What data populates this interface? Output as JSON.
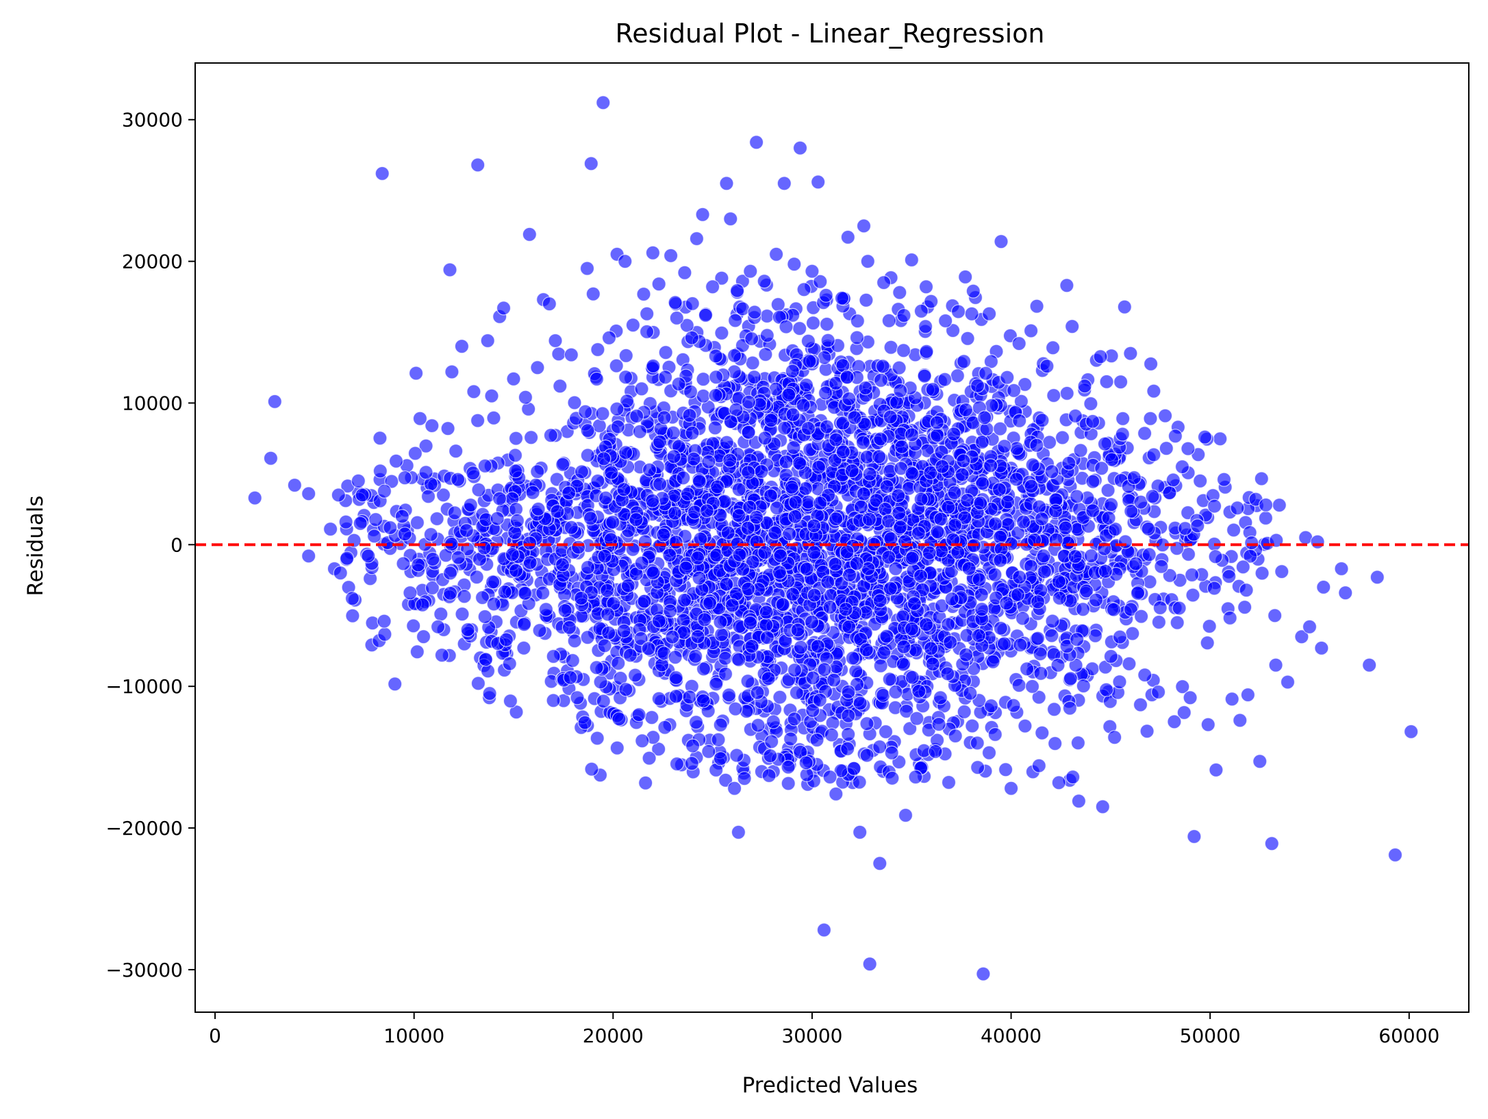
{
  "chart_data": {
    "type": "scatter",
    "title": "Residual Plot - Linear_Regression",
    "xlabel": "Predicted Values",
    "ylabel": "Residuals",
    "xlim": [
      -1000,
      63000
    ],
    "ylim": [
      -33000,
      34000
    ],
    "x_ticks": [
      0,
      10000,
      20000,
      30000,
      40000,
      50000,
      60000
    ],
    "y_ticks": [
      -30000,
      -20000,
      -10000,
      0,
      10000,
      20000,
      30000
    ],
    "x_tick_labels": [
      "0",
      "10000",
      "20000",
      "30000",
      "40000",
      "50000",
      "60000"
    ],
    "y_tick_labels": [
      "−30000",
      "−20000",
      "−10000",
      "0",
      "10000",
      "20000",
      "30000"
    ],
    "grid": false,
    "legend": false,
    "marker_color": "#0000ff",
    "marker_alpha": 0.6,
    "marker_edge_color": "#ffffff",
    "reference_line": {
      "y": 0,
      "color": "#ff0000",
      "style": "dashed"
    },
    "series": [
      {
        "points": [
          [
            2000,
            3300
          ],
          [
            2800,
            6100
          ],
          [
            3000,
            10100
          ],
          [
            4000,
            4200
          ],
          [
            4700,
            3600
          ],
          [
            4700,
            -800
          ],
          [
            5800,
            1100
          ],
          [
            6000,
            -1700
          ],
          [
            6200,
            3500
          ],
          [
            6300,
            -2000
          ],
          [
            7200,
            4500
          ],
          [
            7300,
            1500
          ],
          [
            7400,
            3500
          ],
          [
            7700,
            -800
          ],
          [
            8000,
            600
          ],
          [
            8300,
            5200
          ],
          [
            8400,
            26200
          ],
          [
            8500,
            -5400
          ],
          [
            8800,
            1200
          ],
          [
            9100,
            5900
          ],
          [
            9400,
            2000
          ],
          [
            9800,
            -3400
          ],
          [
            10100,
            12100
          ],
          [
            10300,
            8900
          ],
          [
            10600,
            5100
          ],
          [
            10900,
            8400
          ],
          [
            11200,
            -5800
          ],
          [
            11400,
            -7800
          ],
          [
            11700,
            8200
          ],
          [
            11800,
            19400
          ],
          [
            11900,
            12200
          ],
          [
            12200,
            4600
          ],
          [
            12400,
            14000
          ],
          [
            12700,
            -6000
          ],
          [
            13000,
            10800
          ],
          [
            13200,
            26800
          ],
          [
            13600,
            -8100
          ],
          [
            13700,
            14400
          ],
          [
            13800,
            -10500
          ],
          [
            13900,
            10500
          ],
          [
            14300,
            16100
          ],
          [
            14500,
            16700
          ],
          [
            14800,
            -8400
          ],
          [
            15000,
            11700
          ],
          [
            15100,
            5200
          ],
          [
            15600,
            10400
          ],
          [
            15800,
            21900
          ],
          [
            16200,
            12500
          ],
          [
            16500,
            17300
          ],
          [
            16800,
            17000
          ],
          [
            17000,
            -11000
          ],
          [
            17100,
            14400
          ],
          [
            17900,
            13400
          ],
          [
            18200,
            -10800
          ],
          [
            18700,
            19500
          ],
          [
            18900,
            26900
          ],
          [
            19000,
            17700
          ],
          [
            19500,
            31200
          ],
          [
            19800,
            14600
          ],
          [
            20200,
            20500
          ],
          [
            20300,
            -12300
          ],
          [
            20600,
            20000
          ],
          [
            21000,
            15500
          ],
          [
            21300,
            -12000
          ],
          [
            21700,
            16300
          ],
          [
            22000,
            20600
          ],
          [
            22300,
            18400
          ],
          [
            22600,
            -12900
          ],
          [
            22900,
            20400
          ],
          [
            23200,
            16000
          ],
          [
            23600,
            19200
          ],
          [
            24000,
            -14200
          ],
          [
            24200,
            21600
          ],
          [
            24500,
            23300
          ],
          [
            24800,
            -14600
          ],
          [
            25000,
            18200
          ],
          [
            25400,
            -15100
          ],
          [
            25700,
            25500
          ],
          [
            25900,
            23000
          ],
          [
            26100,
            -17200
          ],
          [
            26300,
            -20300
          ],
          [
            26600,
            -16500
          ],
          [
            26900,
            19300
          ],
          [
            27200,
            28400
          ],
          [
            27600,
            18600
          ],
          [
            27900,
            -14900
          ],
          [
            28200,
            20500
          ],
          [
            28600,
            25500
          ],
          [
            28800,
            -15700
          ],
          [
            29100,
            19800
          ],
          [
            29400,
            28000
          ],
          [
            29700,
            -15400
          ],
          [
            30000,
            19300
          ],
          [
            30300,
            25600
          ],
          [
            30600,
            -27200
          ],
          [
            30700,
            17600
          ],
          [
            30900,
            -16400
          ],
          [
            31200,
            -17600
          ],
          [
            31500,
            17400
          ],
          [
            31800,
            21700
          ],
          [
            32100,
            -15800
          ],
          [
            32400,
            -20300
          ],
          [
            32600,
            22500
          ],
          [
            32800,
            20000
          ],
          [
            32900,
            -29600
          ],
          [
            33400,
            -22500
          ],
          [
            33600,
            18500
          ],
          [
            34000,
            -14700
          ],
          [
            34400,
            17800
          ],
          [
            34700,
            -19100
          ],
          [
            35000,
            20100
          ],
          [
            35200,
            -16400
          ],
          [
            35700,
            15400
          ],
          [
            36200,
            -14600
          ],
          [
            36700,
            15800
          ],
          [
            37200,
            -13500
          ],
          [
            37700,
            18900
          ],
          [
            38100,
            17900
          ],
          [
            38300,
            -14000
          ],
          [
            38600,
            -30300
          ],
          [
            38900,
            16300
          ],
          [
            39200,
            -13400
          ],
          [
            39500,
            21400
          ],
          [
            39800,
            11800
          ],
          [
            40000,
            -17200
          ],
          [
            40400,
            14200
          ],
          [
            40700,
            -12800
          ],
          [
            41000,
            15100
          ],
          [
            41400,
            -15600
          ],
          [
            41800,
            12600
          ],
          [
            42100,
            13900
          ],
          [
            42400,
            -16800
          ],
          [
            42800,
            18300
          ],
          [
            43100,
            -16400
          ],
          [
            43400,
            -18100
          ],
          [
            43700,
            11200
          ],
          [
            44100,
            8700
          ],
          [
            44600,
            -18500
          ],
          [
            44800,
            11500
          ],
          [
            45200,
            -13600
          ],
          [
            45600,
            7800
          ],
          [
            46000,
            13500
          ],
          [
            46500,
            -11300
          ],
          [
            47000,
            8900
          ],
          [
            47400,
            -10400
          ],
          [
            47800,
            6800
          ],
          [
            48200,
            -12500
          ],
          [
            48600,
            5500
          ],
          [
            49000,
            -10800
          ],
          [
            49200,
            -20600
          ],
          [
            49500,
            4500
          ],
          [
            49900,
            -12700
          ],
          [
            50300,
            -15900
          ],
          [
            50700,
            4600
          ],
          [
            51100,
            -10900
          ],
          [
            51500,
            -12400
          ],
          [
            51900,
            -10600
          ],
          [
            52300,
            3200
          ],
          [
            52500,
            -15300
          ],
          [
            52800,
            2800
          ],
          [
            53100,
            -21100
          ],
          [
            53300,
            -8500
          ],
          [
            53600,
            -1900
          ],
          [
            53900,
            -9700
          ],
          [
            54600,
            -6500
          ],
          [
            55000,
            -5800
          ],
          [
            55600,
            -7300
          ],
          [
            56600,
            -1700
          ],
          [
            56800,
            -3400
          ],
          [
            58000,
            -8500
          ],
          [
            58400,
            -2300
          ],
          [
            59300,
            -21900
          ],
          [
            60100,
            -13200
          ],
          [
            54800,
            500
          ],
          [
            55400,
            200
          ],
          [
            55700,
            -3000
          ]
        ]
      }
    ]
  }
}
